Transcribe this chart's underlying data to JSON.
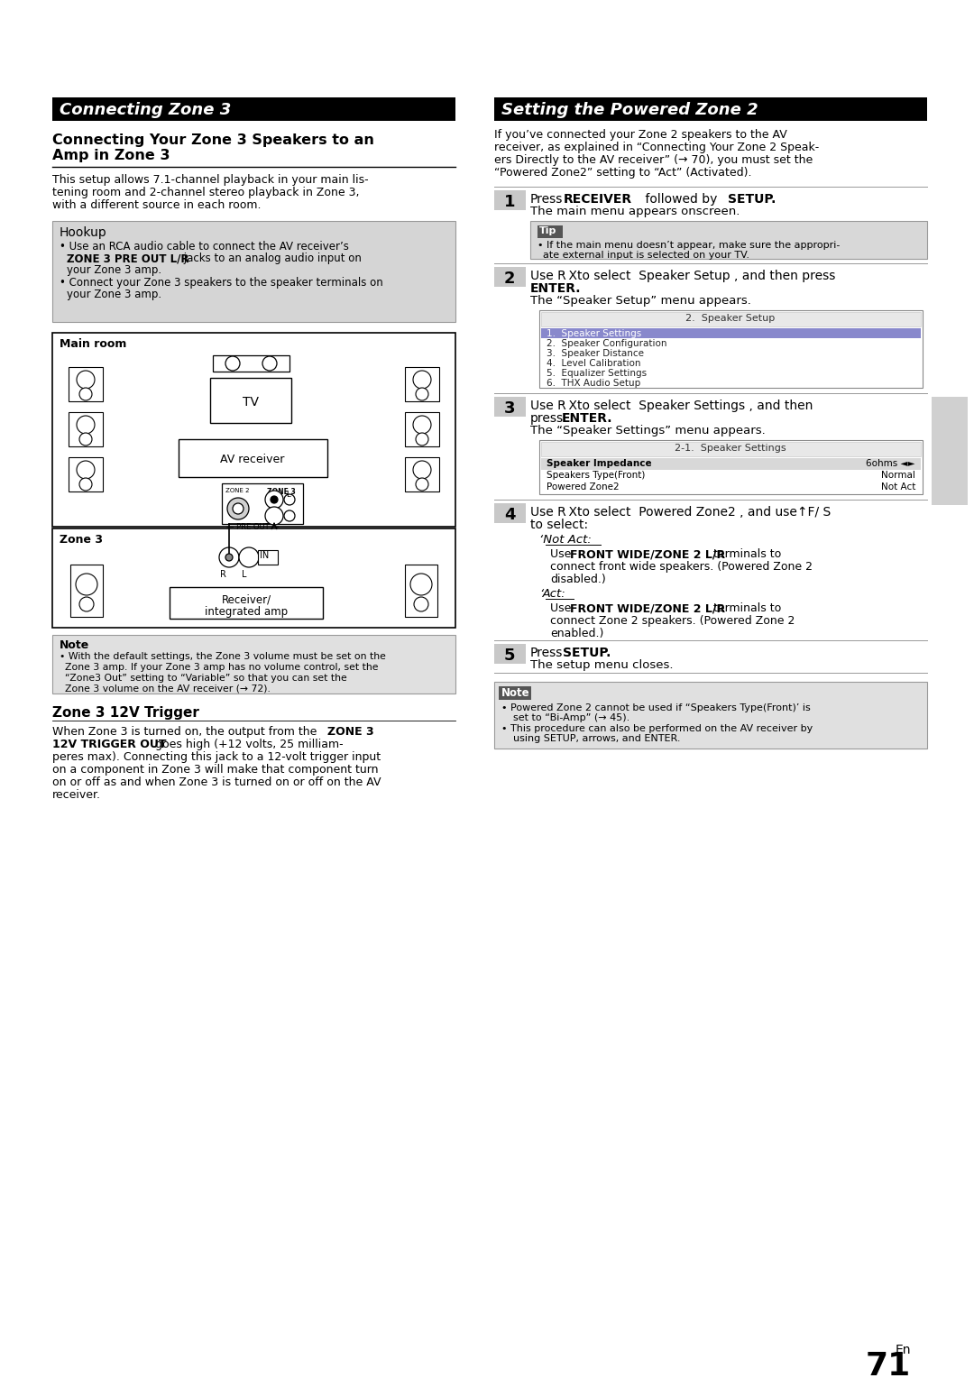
{
  "page_bg": "#ffffff",
  "left_col_title": "Connecting Zone 3",
  "right_col_title": "Setting the Powered Zone 2",
  "subsection_title_line1": "Connecting Your Zone 3 Speakers to an",
  "subsection_title_line2": "Amp in Zone 3",
  "intro_text_lines": [
    "This setup allows 7.1-channel playback in your main lis-",
    "tening room and 2-channel stereo playback in Zone 3,",
    "with a different source in each room."
  ],
  "hookup_title": "Hookup",
  "hookup_line1": "Use an RCA audio cable to connect the AV receiver’s",
  "hookup_line2_bold": "ZONE 3 PRE OUT L/R",
  "hookup_line2_rest": " jacks to an analog audio input on",
  "hookup_line3": "your Zone 3 amp.",
  "hookup_line4": "Connect your Zone 3 speakers to the speaker terminals on",
  "hookup_line5": "your Zone 3 amp.",
  "right_intro_lines": [
    "If you’ve connected your Zone 2 speakers to the AV",
    "receiver, as explained in “Connecting Your Zone 2 Speak-",
    "ers Directly to the AV receiver” (→ 70), you must set the",
    "“Powered Zone2” setting to “Act” (Activated)."
  ],
  "menu2_title": "2.  Speaker Setup",
  "menu2_items": [
    "1.  Speaker Settings",
    "2.  Speaker Configuration",
    "3.  Speaker Distance",
    "4.  Level Calibration",
    "5.  Equalizer Settings",
    "6.  THX Audio Setup"
  ],
  "menu3_title": "2-1.  Speaker Settings",
  "menu3_rows": [
    [
      "Speaker Impedance",
      "6ohms ◄►"
    ],
    [
      "Speakers Type(Front)",
      "Normal"
    ],
    [
      "Powered Zone2",
      "Not Act"
    ]
  ],
  "note_left_lines": [
    "With the default settings, the Zone 3 volume must be set on the",
    "Zone 3 amp. If your Zone 3 amp has no volume control, set the",
    "“Zone3 Out” setting to “Variable” so that you can set the",
    "Zone 3 volume on the AV receiver (→ 72)."
  ],
  "trigger_title": "Zone 3 12V Trigger",
  "trigger_lines": [
    "When Zone 3 is turned on, the output from the ZONE 3",
    "12V TRIGGER OUT goes high (+12 volts, 25 milliam-",
    "peres max). Connecting this jack to a 12-volt trigger input",
    "on a component in Zone 3 will make that component turn",
    "on or off as and when Zone 3 is turned on or off on the AV",
    "receiver."
  ],
  "tip_lines": [
    "If the main menu doesn’t appear, make sure the appropri-",
    "ate external input is selected on your TV."
  ],
  "note_right_lines": [
    "Powered Zone 2 cannot be used if “Speakers Type(Front)’ is",
    "set to “Bi-Amp” (→ 45).",
    "This procedure can also be performed on the AV receiver by",
    "using SETUP, arrows, and ENTER."
  ],
  "page_number": "71"
}
